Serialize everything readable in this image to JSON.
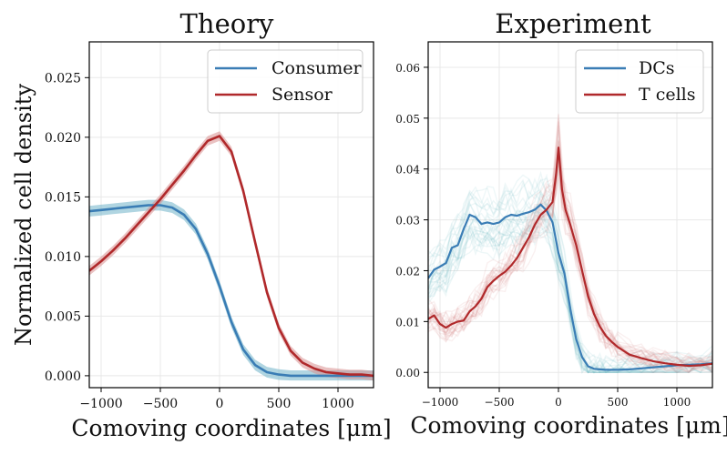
{
  "colors": {
    "consumer": "#3a7db5",
    "consumer_band": "#6fb3c8",
    "sensor": "#b0292b",
    "sensor_band": "#d98f8f"
  },
  "chart_data": [
    {
      "type": "line",
      "title": "Theory",
      "xlabel": "Comoving coordinates [μm]",
      "ylabel": "Normalized cell density",
      "xlim": [
        -1100,
        1300
      ],
      "ylim": [
        -0.001,
        0.028
      ],
      "xticks": [
        -1000,
        -500,
        0,
        500,
        1000
      ],
      "xtick_labels": [
        "−1000",
        "−500",
        "0",
        "500",
        "1000"
      ],
      "yticks": [
        0.0,
        0.005,
        0.01,
        0.015,
        0.02,
        0.025
      ],
      "ytick_labels": [
        "0.000",
        "0.005",
        "0.010",
        "0.015",
        "0.020",
        "0.025"
      ],
      "grid": true,
      "legend": "top-right",
      "series": [
        {
          "name": "Consumer",
          "color_key": "consumer",
          "band": 0.00045,
          "x": [
            -1100,
            -1000,
            -900,
            -800,
            -700,
            -600,
            -500,
            -400,
            -300,
            -200,
            -100,
            0,
            100,
            200,
            300,
            400,
            500,
            600,
            700,
            800,
            1000,
            1300
          ],
          "y": [
            0.0138,
            0.0139,
            0.014,
            0.0141,
            0.0142,
            0.0143,
            0.0143,
            0.0141,
            0.0135,
            0.0123,
            0.0102,
            0.0075,
            0.0045,
            0.0022,
            0.0009,
            0.0003,
            0.0001,
            0.0,
            0.0,
            0.0,
            0.0,
            0.0
          ]
        },
        {
          "name": "Sensor",
          "color_key": "sensor",
          "band": 0.0004,
          "x": [
            -1100,
            -1000,
            -900,
            -800,
            -700,
            -600,
            -500,
            -400,
            -300,
            -200,
            -100,
            0,
            100,
            200,
            300,
            400,
            500,
            600,
            700,
            800,
            900,
            1000,
            1100,
            1200,
            1300
          ],
          "y": [
            0.0088,
            0.0096,
            0.0105,
            0.0115,
            0.0126,
            0.0137,
            0.0148,
            0.016,
            0.0172,
            0.0185,
            0.0197,
            0.0201,
            0.0188,
            0.0155,
            0.0112,
            0.007,
            0.004,
            0.0021,
            0.0011,
            0.0006,
            0.0003,
            0.0002,
            0.0001,
            0.0001,
            0.0
          ]
        }
      ]
    },
    {
      "type": "line",
      "title": "Experiment",
      "xlabel": "Comoving coordinates [μm]",
      "ylabel": "",
      "xlim": [
        -1100,
        1300
      ],
      "ylim": [
        -0.003,
        0.065
      ],
      "xticks": [
        -1000,
        -500,
        0,
        500,
        1000
      ],
      "xtick_labels": [
        "−1000",
        "−500",
        "0",
        "500",
        "1000"
      ],
      "yticks": [
        0.0,
        0.01,
        0.02,
        0.03,
        0.04,
        0.05,
        0.06
      ],
      "ytick_labels": [
        "0.00",
        "0.01",
        "0.02",
        "0.03",
        "0.04",
        "0.05",
        "0.06"
      ],
      "grid": true,
      "legend": "top-right",
      "series": [
        {
          "name": "DCs",
          "color_key": "consumer",
          "spread": 0.006,
          "x": [
            -1100,
            -1050,
            -1000,
            -950,
            -900,
            -850,
            -800,
            -750,
            -700,
            -650,
            -600,
            -550,
            -500,
            -450,
            -400,
            -350,
            -300,
            -250,
            -200,
            -150,
            -100,
            -50,
            0,
            50,
            100,
            150,
            200,
            250,
            300,
            350,
            400,
            500,
            600,
            700,
            800,
            900,
            1000,
            1100,
            1200,
            1300
          ],
          "y": [
            0.0185,
            0.0202,
            0.0208,
            0.0215,
            0.0245,
            0.025,
            0.0282,
            0.031,
            0.0305,
            0.0292,
            0.0295,
            0.0292,
            0.0295,
            0.0305,
            0.031,
            0.0308,
            0.0312,
            0.0315,
            0.032,
            0.033,
            0.0318,
            0.0295,
            0.0235,
            0.0195,
            0.0125,
            0.0065,
            0.003,
            0.0012,
            0.0007,
            0.0006,
            0.0005,
            0.0005,
            0.0006,
            0.0008,
            0.001,
            0.0012,
            0.0014,
            0.0015,
            0.0016,
            0.0018
          ]
        },
        {
          "name": "T cells",
          "color_key": "sensor",
          "spread": 0.005,
          "x": [
            -1100,
            -1050,
            -1000,
            -950,
            -900,
            -850,
            -800,
            -750,
            -700,
            -650,
            -600,
            -550,
            -500,
            -450,
            -400,
            -350,
            -300,
            -250,
            -200,
            -150,
            -100,
            -50,
            -20,
            0,
            30,
            60,
            100,
            150,
            200,
            250,
            300,
            350,
            400,
            450,
            500,
            600,
            700,
            800,
            900,
            1000,
            1100,
            1200,
            1300
          ],
          "y": [
            0.0105,
            0.0112,
            0.0095,
            0.0088,
            0.0095,
            0.01,
            0.0102,
            0.012,
            0.013,
            0.0145,
            0.0168,
            0.018,
            0.019,
            0.0198,
            0.021,
            0.0225,
            0.0245,
            0.0265,
            0.029,
            0.031,
            0.032,
            0.0335,
            0.039,
            0.0442,
            0.036,
            0.032,
            0.029,
            0.025,
            0.02,
            0.015,
            0.0115,
            0.009,
            0.0072,
            0.006,
            0.005,
            0.0035,
            0.0028,
            0.0022,
            0.0018,
            0.0015,
            0.0013,
            0.0014,
            0.0017
          ]
        }
      ]
    }
  ]
}
